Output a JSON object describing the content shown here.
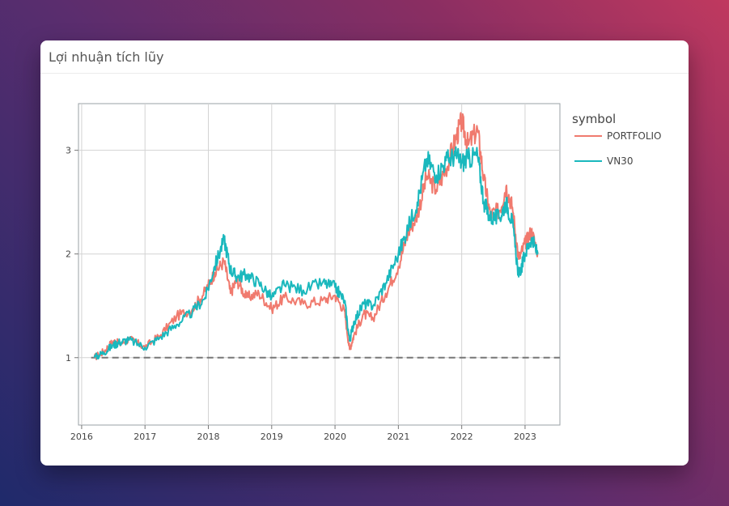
{
  "card": {
    "title": "Lợi nhuận tích lũy"
  },
  "chart_data": {
    "type": "line",
    "title": "",
    "xlabel": "",
    "ylabel": "",
    "xlim": [
      2015.95,
      2023.55
    ],
    "ylim": [
      0.35,
      3.45
    ],
    "x_ticks": [
      2016,
      2017,
      2018,
      2019,
      2020,
      2021,
      2022,
      2023
    ],
    "x_tick_labels": [
      "2016",
      "2017",
      "2018",
      "2019",
      "2020",
      "2021",
      "2022",
      "2023"
    ],
    "y_ticks": [
      1,
      2,
      3
    ],
    "y_tick_labels": [
      "1",
      "2",
      "3"
    ],
    "grid": true,
    "reference_line": {
      "y": 1,
      "style": "dashed",
      "color": "#777777"
    },
    "legend": {
      "title": "symbol",
      "placement": "right"
    },
    "series": [
      {
        "name": "PORTFOLIO",
        "color": "#f07a6e",
        "points": [
          [
            2016.2,
            1.0
          ],
          [
            2016.35,
            1.06
          ],
          [
            2016.5,
            1.16
          ],
          [
            2016.6,
            1.13
          ],
          [
            2016.75,
            1.18
          ],
          [
            2017.0,
            1.1
          ],
          [
            2017.25,
            1.22
          ],
          [
            2017.5,
            1.4
          ],
          [
            2017.75,
            1.47
          ],
          [
            2017.95,
            1.64
          ],
          [
            2018.1,
            1.82
          ],
          [
            2018.25,
            1.93
          ],
          [
            2018.35,
            1.62
          ],
          [
            2018.45,
            1.75
          ],
          [
            2018.6,
            1.58
          ],
          [
            2018.8,
            1.62
          ],
          [
            2019.0,
            1.47
          ],
          [
            2019.2,
            1.58
          ],
          [
            2019.5,
            1.52
          ],
          [
            2019.8,
            1.55
          ],
          [
            2020.0,
            1.6
          ],
          [
            2020.15,
            1.45
          ],
          [
            2020.23,
            1.08
          ],
          [
            2020.3,
            1.22
          ],
          [
            2020.45,
            1.42
          ],
          [
            2020.6,
            1.38
          ],
          [
            2020.8,
            1.62
          ],
          [
            2021.0,
            1.88
          ],
          [
            2021.15,
            2.2
          ],
          [
            2021.3,
            2.38
          ],
          [
            2021.45,
            2.75
          ],
          [
            2021.6,
            2.62
          ],
          [
            2021.75,
            2.82
          ],
          [
            2021.9,
            3.1
          ],
          [
            2022.0,
            3.28
          ],
          [
            2022.1,
            3.05
          ],
          [
            2022.25,
            3.2
          ],
          [
            2022.35,
            2.72
          ],
          [
            2022.45,
            2.38
          ],
          [
            2022.6,
            2.42
          ],
          [
            2022.7,
            2.65
          ],
          [
            2022.8,
            2.45
          ],
          [
            2022.9,
            1.95
          ],
          [
            2023.0,
            2.1
          ],
          [
            2023.1,
            2.22
          ],
          [
            2023.2,
            2.02
          ]
        ]
      },
      {
        "name": "VN30",
        "color": "#1ab8bd",
        "points": [
          [
            2016.2,
            1.0
          ],
          [
            2016.35,
            1.05
          ],
          [
            2016.5,
            1.12
          ],
          [
            2016.6,
            1.15
          ],
          [
            2016.75,
            1.17
          ],
          [
            2017.0,
            1.1
          ],
          [
            2017.25,
            1.2
          ],
          [
            2017.5,
            1.32
          ],
          [
            2017.75,
            1.44
          ],
          [
            2017.95,
            1.58
          ],
          [
            2018.1,
            1.88
          ],
          [
            2018.25,
            2.14
          ],
          [
            2018.35,
            1.85
          ],
          [
            2018.45,
            1.78
          ],
          [
            2018.6,
            1.8
          ],
          [
            2018.8,
            1.72
          ],
          [
            2019.0,
            1.58
          ],
          [
            2019.2,
            1.7
          ],
          [
            2019.5,
            1.65
          ],
          [
            2019.8,
            1.72
          ],
          [
            2020.0,
            1.68
          ],
          [
            2020.15,
            1.55
          ],
          [
            2020.23,
            1.16
          ],
          [
            2020.3,
            1.35
          ],
          [
            2020.45,
            1.52
          ],
          [
            2020.6,
            1.5
          ],
          [
            2020.8,
            1.72
          ],
          [
            2021.0,
            2.0
          ],
          [
            2021.15,
            2.25
          ],
          [
            2021.3,
            2.5
          ],
          [
            2021.45,
            2.92
          ],
          [
            2021.6,
            2.76
          ],
          [
            2021.75,
            2.9
          ],
          [
            2021.9,
            2.95
          ],
          [
            2022.0,
            2.88
          ],
          [
            2022.1,
            2.92
          ],
          [
            2022.25,
            2.95
          ],
          [
            2022.35,
            2.5
          ],
          [
            2022.45,
            2.35
          ],
          [
            2022.6,
            2.35
          ],
          [
            2022.7,
            2.5
          ],
          [
            2022.8,
            2.3
          ],
          [
            2022.9,
            1.78
          ],
          [
            2023.0,
            2.0
          ],
          [
            2023.1,
            2.15
          ],
          [
            2023.2,
            2.0
          ]
        ]
      }
    ]
  }
}
